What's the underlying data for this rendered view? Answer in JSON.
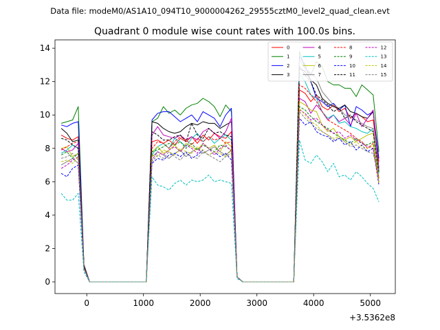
{
  "chart_data": {
    "type": "line",
    "suptitle": "Data file: modeM0/AS1A10_094T10_9000004262_29555cztM0_level2_quad_clean.evt",
    "title": "Quadrant 0 module wise count rates with 100.0s bins.",
    "xlabel": "",
    "ylabel": "",
    "offset_label": "+3.5362e8",
    "xlim": [
      -560,
      5440
    ],
    "ylim": [
      -0.7,
      14.5
    ],
    "xticks": [
      0,
      1000,
      2000,
      3000,
      4000,
      5000
    ],
    "xtick_labels": [
      "0",
      "1000",
      "2000",
      "3000",
      "4000",
      "5000"
    ],
    "yticks": [
      0,
      2,
      4,
      6,
      8,
      10,
      12,
      14
    ],
    "ytick_labels": [
      "0",
      "2",
      "4",
      "6",
      "8",
      "10",
      "12",
      "14"
    ],
    "x": [
      -450,
      -350,
      -250,
      -150,
      -50,
      50,
      150,
      250,
      350,
      450,
      550,
      650,
      750,
      850,
      950,
      1050,
      1150,
      1250,
      1350,
      1450,
      1550,
      1650,
      1750,
      1850,
      1950,
      2050,
      2150,
      2250,
      2350,
      2450,
      2550,
      2650,
      2750,
      2850,
      2950,
      3050,
      3150,
      3250,
      3350,
      3450,
      3550,
      3650,
      3750,
      3850,
      3950,
      4050,
      4150,
      4250,
      4350,
      4450,
      4550,
      4650,
      4750,
      4850,
      4950,
      5050,
      5150
    ],
    "series": [
      {
        "name": "0",
        "color": "#ff0000",
        "dash": false,
        "values": [
          8.8,
          8.6,
          8.5,
          8.7,
          1.0,
          0,
          0,
          0,
          0,
          0,
          0,
          0,
          0,
          0,
          0,
          0,
          8.4,
          8.5,
          8.3,
          8.5,
          8.2,
          8.6,
          8.4,
          8.7,
          8.3,
          8.8,
          8.5,
          8.9,
          8.7,
          8.6,
          9.0,
          0.3,
          0,
          0,
          0,
          0,
          0,
          0,
          0,
          0,
          0,
          0,
          11.5,
          11.3,
          10.8,
          11.2,
          10.5,
          10.3,
          10.6,
          10.2,
          10.4,
          9.8,
          10.1,
          9.9,
          9.6,
          9.7,
          7.2
        ]
      },
      {
        "name": "1",
        "color": "#008000",
        "dash": false,
        "values": [
          9.5,
          9.6,
          9.7,
          10.5,
          1.0,
          0,
          0,
          0,
          0,
          0,
          0,
          0,
          0,
          0,
          0,
          0,
          9.6,
          9.8,
          10.5,
          10.1,
          10.3,
          10.0,
          10.4,
          10.6,
          10.7,
          11.0,
          10.8,
          10.5,
          9.9,
          10.6,
          10.2,
          0.3,
          0,
          0,
          0,
          0,
          0,
          0,
          0,
          0,
          0,
          0,
          13.8,
          12.8,
          12.4,
          13.2,
          12.9,
          12.0,
          11.8,
          11.8,
          11.6,
          11.6,
          11.1,
          11.8,
          11.5,
          11.2,
          7.8
        ]
      },
      {
        "name": "2",
        "color": "#0000ff",
        "dash": false,
        "values": [
          9.4,
          9.3,
          9.5,
          9.6,
          1.0,
          0,
          0,
          0,
          0,
          0,
          0,
          0,
          0,
          0,
          0,
          0,
          9.7,
          10.1,
          10.2,
          10.2,
          9.9,
          9.6,
          9.8,
          10.0,
          9.6,
          10.2,
          10.0,
          9.8,
          9.3,
          10.0,
          10.4,
          0.3,
          0,
          0,
          0,
          0,
          0,
          0,
          0,
          0,
          0,
          0,
          13.5,
          13.0,
          12.0,
          11.0,
          10.8,
          10.5,
          10.7,
          10.3,
          10.6,
          9.3,
          10.5,
          10.3,
          10.0,
          10.2,
          7.4
        ]
      },
      {
        "name": "3",
        "color": "#000000",
        "dash": false,
        "values": [
          9.2,
          8.9,
          8.4,
          8.5,
          1.0,
          0,
          0,
          0,
          0,
          0,
          0,
          0,
          0,
          0,
          0,
          0,
          9.6,
          9.5,
          9.2,
          9.0,
          8.9,
          9.0,
          9.3,
          9.5,
          9.4,
          9.6,
          9.5,
          9.5,
          9.2,
          9.4,
          9.6,
          0.3,
          0,
          0,
          0,
          0,
          0,
          0,
          0,
          0,
          0,
          0,
          12.8,
          12.6,
          12.1,
          11.8,
          11.0,
          10.7,
          10.5,
          10.4,
          10.6,
          10.2,
          10.1,
          9.9,
          9.8,
          10.2,
          6.8
        ]
      },
      {
        "name": "4",
        "color": "#bf00bf",
        "dash": false,
        "values": [
          8.0,
          7.8,
          7.9,
          8.3,
          0.9,
          0,
          0,
          0,
          0,
          0,
          0,
          0,
          0,
          0,
          0,
          0,
          8.8,
          9.3,
          8.8,
          8.7,
          8.6,
          8.8,
          8.5,
          8.7,
          8.5,
          9.0,
          9.2,
          8.9,
          8.6,
          9.0,
          9.8,
          0.3,
          0,
          0,
          0,
          0,
          0,
          0,
          0,
          0,
          0,
          0,
          11.0,
          10.8,
          10.1,
          10.6,
          10.2,
          9.7,
          10.0,
          9.6,
          9.8,
          9.4,
          10.1,
          9.3,
          9.8,
          10.3,
          6.8
        ]
      },
      {
        "name": "5",
        "color": "#00bfbf",
        "dash": false,
        "values": [
          7.7,
          7.9,
          8.2,
          8.0,
          0.9,
          0,
          0,
          0,
          0,
          0,
          0,
          0,
          0,
          0,
          0,
          0,
          7.6,
          8.1,
          8.3,
          8.0,
          8.6,
          8.4,
          8.1,
          8.6,
          8.9,
          8.4,
          8.7,
          8.3,
          8.6,
          8.8,
          8.5,
          0.3,
          0,
          0,
          0,
          0,
          0,
          0,
          0,
          0,
          0,
          0,
          12.5,
          12.0,
          11.2,
          11.0,
          10.2,
          9.8,
          10.0,
          9.5,
          9.6,
          9.3,
          9.2,
          9.0,
          8.9,
          9.2,
          6.5
        ]
      },
      {
        "name": "6",
        "color": "#bfbf00",
        "dash": false,
        "values": [
          8.0,
          8.1,
          7.5,
          7.7,
          0.9,
          0,
          0,
          0,
          0,
          0,
          0,
          0,
          0,
          0,
          0,
          0,
          7.8,
          8.1,
          7.7,
          7.9,
          8.2,
          7.8,
          8.3,
          8.1,
          7.9,
          8.3,
          8.0,
          8.2,
          7.8,
          8.4,
          8.1,
          0.3,
          0,
          0,
          0,
          0,
          0,
          0,
          0,
          0,
          0,
          0,
          10.8,
          10.6,
          10.3,
          10.2,
          9.4,
          9.0,
          9.2,
          8.7,
          8.5,
          8.7,
          8.4,
          8.6,
          8.8,
          8.9,
          6.2
        ]
      },
      {
        "name": "7",
        "color": "#808080",
        "dash": false,
        "values": [
          7.0,
          7.2,
          7.4,
          7.1,
          0.9,
          0,
          0,
          0,
          0,
          0,
          0,
          0,
          0,
          0,
          0,
          0,
          7.5,
          7.8,
          7.6,
          7.4,
          7.7,
          7.9,
          7.5,
          7.8,
          8.0,
          7.7,
          7.9,
          8.1,
          7.8,
          7.6,
          7.9,
          0.3,
          0,
          0,
          0,
          0,
          0,
          0,
          0,
          0,
          0,
          0,
          13.3,
          12.8,
          12.5,
          12.2,
          11.4,
          11.0,
          10.6,
          10.4,
          10.0,
          9.9,
          9.7,
          9.5,
          9.3,
          9.2,
          6.7
        ]
      },
      {
        "name": "8",
        "color": "#ff0000",
        "dash": true,
        "values": [
          7.9,
          8.1,
          8.3,
          8.4,
          0.9,
          0,
          0,
          0,
          0,
          0,
          0,
          0,
          0,
          0,
          0,
          0,
          8.0,
          8.4,
          8.3,
          8.0,
          8.4,
          8.7,
          8.5,
          8.2,
          8.6,
          8.4,
          8.7,
          8.5,
          8.6,
          8.3,
          8.4,
          0.3,
          0,
          0,
          0,
          0,
          0,
          0,
          0,
          0,
          0,
          0,
          11.8,
          11.6,
          11.2,
          10.8,
          10.2,
          9.7,
          9.5,
          9.3,
          9.1,
          8.9,
          8.6,
          8.4,
          8.0,
          8.3,
          6.2
        ]
      },
      {
        "name": "9",
        "color": "#008000",
        "dash": true,
        "values": [
          7.6,
          7.8,
          7.4,
          7.7,
          0.8,
          0,
          0,
          0,
          0,
          0,
          0,
          0,
          0,
          0,
          0,
          0,
          7.8,
          7.9,
          8.1,
          8.3,
          8.2,
          8.4,
          8.0,
          8.3,
          7.9,
          8.2,
          8.0,
          7.8,
          8.2,
          8.1,
          7.9,
          0.3,
          0,
          0,
          0,
          0,
          0,
          0,
          0,
          0,
          0,
          0,
          10.5,
          10.3,
          9.9,
          9.6,
          9.4,
          9.2,
          8.9,
          8.7,
          8.5,
          8.3,
          8.6,
          8.3,
          8.2,
          8.4,
          6.0
        ]
      },
      {
        "name": "10",
        "color": "#0000ff",
        "dash": true,
        "values": [
          6.5,
          6.3,
          6.8,
          7.0,
          0.8,
          0,
          0,
          0,
          0,
          0,
          0,
          0,
          0,
          0,
          0,
          0,
          7.1,
          7.4,
          7.3,
          7.6,
          7.7,
          7.5,
          7.8,
          7.4,
          7.6,
          7.9,
          7.6,
          7.8,
          7.5,
          7.7,
          7.3,
          0.3,
          0,
          0,
          0,
          0,
          0,
          0,
          0,
          0,
          0,
          0,
          9.8,
          9.4,
          9.6,
          9.0,
          8.8,
          8.7,
          8.4,
          8.6,
          8.2,
          8.4,
          7.9,
          8.2,
          7.8,
          8.0,
          5.8
        ]
      },
      {
        "name": "11",
        "color": "#000000",
        "dash": true,
        "values": [
          8.6,
          8.5,
          8.2,
          8.0,
          0.9,
          0,
          0,
          0,
          0,
          0,
          0,
          0,
          0,
          0,
          0,
          0,
          9.0,
          8.8,
          8.5,
          8.5,
          8.7,
          8.8,
          8.4,
          9.5,
          8.8,
          8.6,
          9.2,
          8.9,
          9.0,
          8.8,
          8.7,
          0.3,
          0,
          0,
          0,
          0,
          0,
          0,
          0,
          0,
          0,
          0,
          12.9,
          12.4,
          12.0,
          11.2,
          10.9,
          10.6,
          10.2,
          10.4,
          9.8,
          10.0,
          9.6,
          9.4,
          9.2,
          9.0,
          6.6
        ]
      },
      {
        "name": "12",
        "color": "#bf00bf",
        "dash": true,
        "values": [
          6.8,
          7.0,
          7.3,
          7.5,
          0.8,
          0,
          0,
          0,
          0,
          0,
          0,
          0,
          0,
          0,
          0,
          0,
          7.3,
          7.8,
          7.6,
          7.9,
          8.1,
          7.8,
          8.2,
          8.0,
          7.7,
          8.3,
          8.0,
          7.6,
          8.0,
          8.2,
          7.8,
          0.3,
          0,
          0,
          0,
          0,
          0,
          0,
          0,
          0,
          0,
          0,
          10.3,
          10.1,
          9.7,
          9.8,
          9.4,
          9.1,
          8.9,
          9.0,
          8.6,
          8.8,
          8.5,
          8.3,
          8.1,
          8.0,
          5.9
        ]
      },
      {
        "name": "13",
        "color": "#00bfbf",
        "dash": true,
        "values": [
          5.3,
          4.9,
          4.9,
          5.3,
          0.6,
          0,
          0,
          0,
          0,
          0,
          0,
          0,
          0,
          0,
          0,
          0,
          6.3,
          5.8,
          5.7,
          5.5,
          5.9,
          6.1,
          5.8,
          6.1,
          6.0,
          6.1,
          6.4,
          6.0,
          6.1,
          6.0,
          5.9,
          0.2,
          0,
          0,
          0,
          0,
          0,
          0,
          0,
          0,
          0,
          0,
          8.5,
          7.3,
          7.1,
          7.6,
          7.2,
          6.6,
          7.1,
          6.3,
          6.4,
          6.1,
          6.6,
          6.3,
          5.9,
          5.6,
          4.8
        ]
      },
      {
        "name": "14",
        "color": "#bfbf00",
        "dash": true,
        "values": [
          7.2,
          7.3,
          7.1,
          7.5,
          0.8,
          0,
          0,
          0,
          0,
          0,
          0,
          0,
          0,
          0,
          0,
          0,
          7.6,
          7.5,
          7.9,
          7.8,
          7.6,
          8.0,
          7.8,
          7.7,
          8.1,
          7.9,
          7.6,
          7.8,
          7.7,
          7.5,
          7.9,
          0.3,
          0,
          0,
          0,
          0,
          0,
          0,
          0,
          0,
          0,
          0,
          10.4,
          10.0,
          9.6,
          9.4,
          9.0,
          8.8,
          8.6,
          8.7,
          8.4,
          8.2,
          8.4,
          8.1,
          8.0,
          8.2,
          5.9
        ]
      },
      {
        "name": "15",
        "color": "#808080",
        "dash": true,
        "values": [
          7.4,
          7.5,
          7.7,
          7.3,
          0.8,
          0,
          0,
          0,
          0,
          0,
          0,
          0,
          0,
          0,
          0,
          0,
          7.2,
          7.6,
          7.4,
          7.8,
          7.5,
          7.3,
          7.7,
          7.5,
          7.4,
          7.8,
          7.6,
          7.4,
          7.2,
          7.5,
          7.7,
          0.3,
          0,
          0,
          0,
          0,
          0,
          0,
          0,
          0,
          0,
          0,
          10.2,
          9.8,
          9.5,
          9.2,
          9.0,
          8.8,
          8.5,
          8.6,
          8.4,
          8.1,
          8.2,
          8.0,
          7.8,
          7.7,
          6.3
        ]
      }
    ]
  }
}
